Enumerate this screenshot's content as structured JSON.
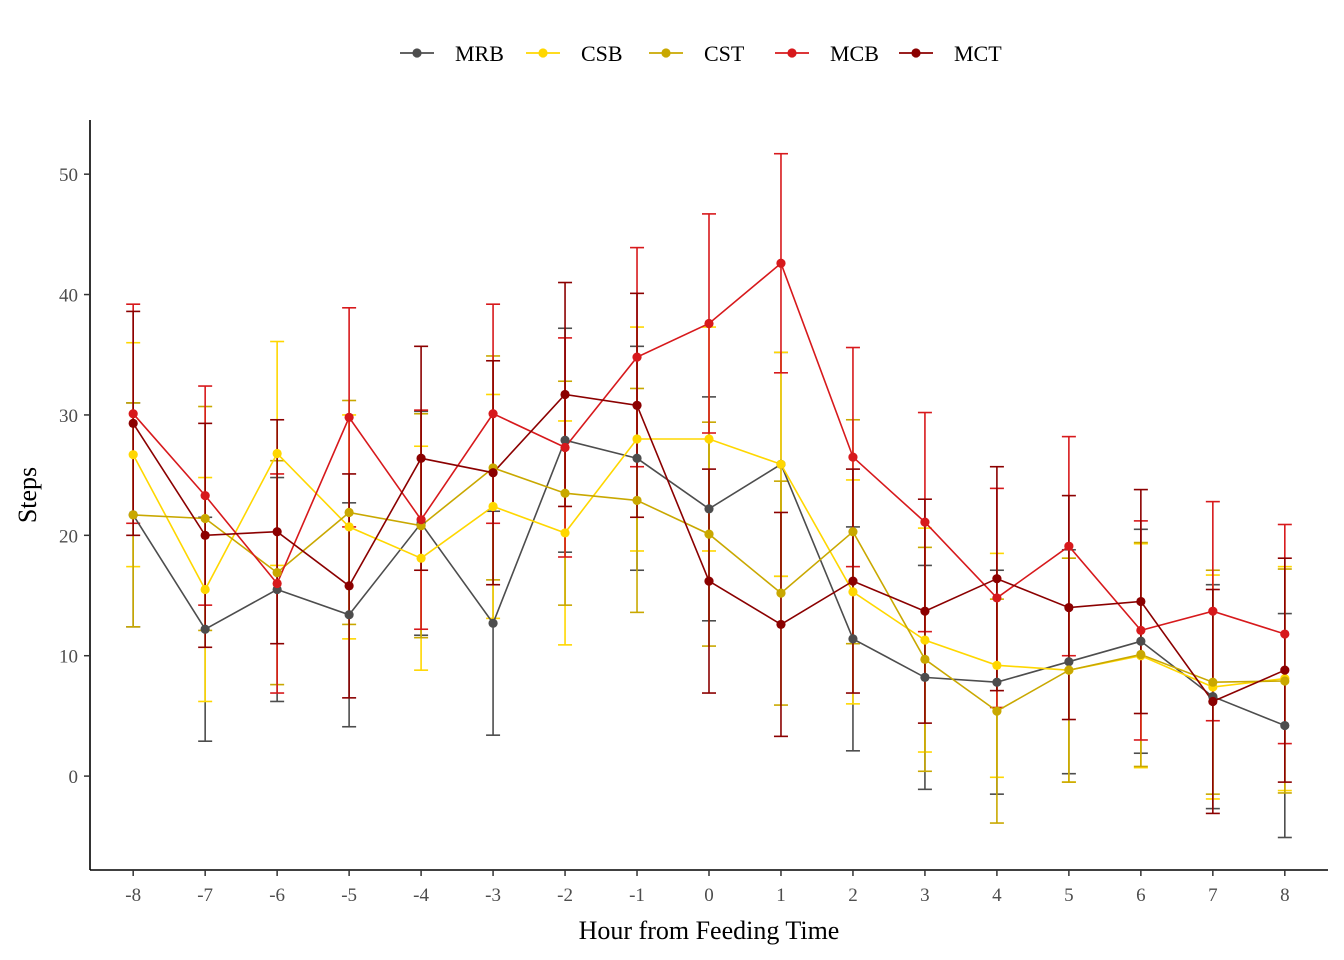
{
  "chart_data": {
    "type": "line",
    "xlabel": "Hour from Feeding Time",
    "ylabel": "Steps",
    "x": [
      -8,
      -7,
      -6,
      -5,
      -4,
      -3,
      -2,
      -1,
      0,
      1,
      2,
      3,
      4,
      5,
      6,
      7,
      8
    ],
    "x_tick_labels": [
      "-8",
      "-7",
      "-6",
      "-5",
      "-4",
      "-3",
      "-2",
      "-1",
      "0",
      "1",
      "2",
      "3",
      "4",
      "5",
      "6",
      "7",
      "8"
    ],
    "y_ticks": [
      0,
      10,
      20,
      30,
      40,
      50
    ],
    "y_tick_labels": [
      "0",
      "10",
      "20",
      "30",
      "40",
      "50"
    ],
    "xlim": [
      -8.6,
      8.6
    ],
    "ylim": [
      -7.8,
      54.5
    ],
    "grid": false,
    "legend_position": "top",
    "series": [
      {
        "name": "MRB",
        "color": "#4d4d4d",
        "values": [
          21.7,
          12.2,
          15.5,
          13.4,
          21.0,
          12.7,
          27.9,
          26.4,
          22.2,
          25.9,
          11.4,
          8.2,
          7.8,
          9.5,
          11.2,
          6.6,
          4.2
        ],
        "errors": [
          9.3,
          9.3,
          9.3,
          9.3,
          9.3,
          9.3,
          9.3,
          9.3,
          9.3,
          9.3,
          9.3,
          9.3,
          9.3,
          9.3,
          9.3,
          9.3,
          9.3
        ]
      },
      {
        "name": "CSB",
        "color": "#ffd700",
        "values": [
          26.7,
          15.5,
          26.8,
          20.7,
          18.1,
          22.4,
          20.2,
          28.0,
          28.0,
          25.9,
          15.3,
          11.3,
          9.2,
          8.8,
          10.0,
          7.4,
          8.1
        ],
        "errors": [
          9.3,
          9.3,
          9.3,
          9.3,
          9.3,
          9.3,
          9.3,
          9.3,
          9.3,
          9.3,
          9.3,
          9.3,
          9.3,
          9.3,
          9.3,
          9.3,
          9.3
        ]
      },
      {
        "name": "CST",
        "color": "#c9a800",
        "values": [
          21.7,
          21.4,
          16.9,
          21.9,
          20.8,
          25.6,
          23.5,
          22.9,
          20.1,
          15.2,
          20.3,
          9.7,
          5.4,
          8.8,
          10.1,
          7.8,
          7.9
        ],
        "errors": [
          9.3,
          9.3,
          9.3,
          9.3,
          9.3,
          9.3,
          9.3,
          9.3,
          9.3,
          9.3,
          9.3,
          9.3,
          9.3,
          9.3,
          9.3,
          9.3,
          9.3
        ]
      },
      {
        "name": "MCB",
        "color": "#d7191c",
        "values": [
          30.1,
          23.3,
          16.0,
          29.8,
          21.3,
          30.1,
          27.3,
          34.8,
          37.6,
          42.6,
          26.5,
          21.1,
          14.8,
          19.1,
          12.1,
          13.7,
          11.8
        ],
        "errors": [
          9.1,
          9.1,
          9.1,
          9.1,
          9.1,
          9.1,
          9.1,
          9.1,
          9.1,
          9.1,
          9.1,
          9.1,
          9.1,
          9.1,
          9.1,
          9.1,
          9.1
        ]
      },
      {
        "name": "MCT",
        "color": "#8b0000",
        "values": [
          29.3,
          20.0,
          20.3,
          15.8,
          26.4,
          25.2,
          31.7,
          30.8,
          16.2,
          12.6,
          16.2,
          13.7,
          16.4,
          14.0,
          14.5,
          6.2,
          8.8
        ],
        "errors": [
          9.3,
          9.3,
          9.3,
          9.3,
          9.3,
          9.3,
          9.3,
          9.3,
          9.3,
          9.3,
          9.3,
          9.3,
          9.3,
          9.3,
          9.3,
          9.3,
          9.3
        ]
      }
    ]
  }
}
